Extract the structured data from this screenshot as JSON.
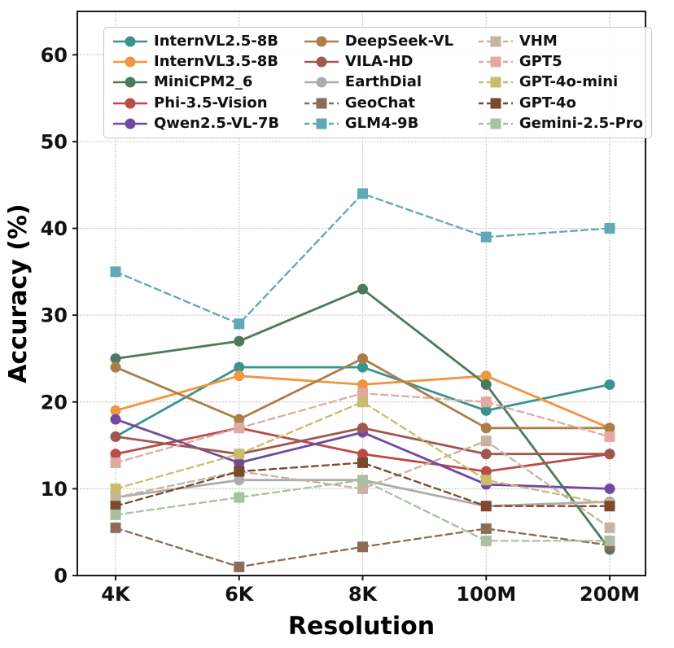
{
  "chart_data": {
    "type": "line",
    "title": "",
    "xlabel": "Resolution",
    "ylabel": "Accuracy (%)",
    "categories": [
      "4K",
      "6K",
      "8K",
      "100M",
      "200M"
    ],
    "yticks": [
      0,
      10,
      20,
      30,
      40,
      50,
      60
    ],
    "ylim": [
      0,
      65
    ],
    "grid": "dotted",
    "legend_position": "upper-left, 3 columns, 5 rows, framed box",
    "axis_color": "#1a1a1a",
    "grid_color": "#c9c9c9",
    "series": [
      {
        "name": "InternVL2.5-8B",
        "color": "#3A938F",
        "line": "solid",
        "marker": "circle",
        "values": [
          16,
          24,
          24,
          19,
          22
        ]
      },
      {
        "name": "InternVL3.5-8B",
        "color": "#EE9640",
        "line": "solid",
        "marker": "circle",
        "values": [
          19,
          23,
          22,
          23,
          17
        ]
      },
      {
        "name": "MiniCPM2_6",
        "color": "#4C7A5C",
        "line": "solid",
        "marker": "circle",
        "values": [
          25,
          27,
          33,
          22,
          3
        ]
      },
      {
        "name": "Phi-3.5-Vision",
        "color": "#B94B48",
        "line": "solid",
        "marker": "circle",
        "values": [
          14,
          17,
          14,
          12,
          14
        ]
      },
      {
        "name": "Qwen2.5-VL-7B",
        "color": "#7149A1",
        "line": "solid",
        "marker": "circle",
        "values": [
          18,
          13,
          16.5,
          10.5,
          10
        ]
      },
      {
        "name": "DeepSeek-VL",
        "color": "#AA7F47",
        "line": "solid",
        "marker": "circle",
        "values": [
          24,
          18,
          25,
          17,
          17
        ]
      },
      {
        "name": "VILA-HD",
        "color": "#9D5950",
        "line": "solid",
        "marker": "circle",
        "values": [
          16,
          14,
          17,
          14,
          14
        ]
      },
      {
        "name": "EarthDial",
        "color": "#ACACAC",
        "line": "solid",
        "marker": "circle",
        "values": [
          9,
          11,
          11,
          8,
          8.5
        ]
      },
      {
        "name": "GeoChat",
        "color": "#8B6C57",
        "line": "dashed",
        "marker": "square",
        "values": [
          5.5,
          1,
          3.3,
          5.4,
          3.5
        ]
      },
      {
        "name": "GLM4-9B",
        "color": "#5FA8B5",
        "line": "dashed",
        "marker": "square",
        "values": [
          35,
          29,
          44,
          39,
          40
        ]
      },
      {
        "name": "VHM",
        "color": "#C6B3A1",
        "line": "dashed",
        "marker": "square",
        "values": [
          9,
          12,
          10,
          15.5,
          5.5
        ]
      },
      {
        "name": "GPT5",
        "color": "#E2A9A2",
        "line": "dashed",
        "marker": "square",
        "values": [
          13,
          17,
          21,
          20,
          16
        ]
      },
      {
        "name": "GPT-4o-mini",
        "color": "#C8BD6E",
        "line": "dashed",
        "marker": "square",
        "values": [
          10,
          14,
          20,
          11,
          8.2
        ]
      },
      {
        "name": "GPT-4o",
        "color": "#7B4A2D",
        "line": "dashed",
        "marker": "square",
        "values": [
          8,
          12,
          13,
          8,
          8
        ]
      },
      {
        "name": "Gemini-2.5-Pro",
        "color": "#A9C0A4",
        "line": "dashed",
        "marker": "square",
        "values": [
          7,
          9,
          11,
          4,
          4
        ]
      }
    ]
  }
}
